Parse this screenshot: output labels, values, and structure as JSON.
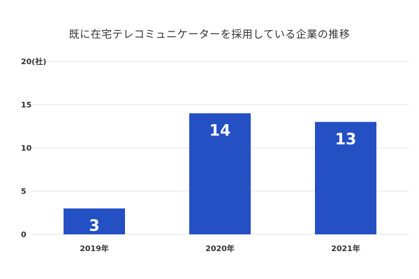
{
  "chart_data": {
    "type": "bar",
    "title": "既に在宅テレコミュニケーターを採用している企業の推移",
    "categories": [
      "2019年",
      "2020年",
      "2021年"
    ],
    "values": [
      3,
      14,
      13
    ],
    "y_ticks": [
      "0",
      "5",
      "10",
      "15",
      "20"
    ],
    "y_top_label": "20(社)",
    "ylim": [
      0,
      20
    ],
    "bar_color": "#2450c4",
    "grid_color": "#e3e3e3",
    "grid": true
  }
}
